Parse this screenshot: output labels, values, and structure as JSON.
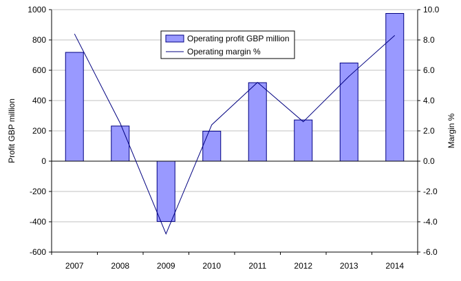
{
  "chart_data": {
    "type": "bar",
    "categories": [
      "2007",
      "2008",
      "2009",
      "2010",
      "2011",
      "2012",
      "2013",
      "2014"
    ],
    "series": [
      {
        "name": "Operating profit GBP million",
        "type": "bar",
        "axis": "left",
        "values": [
          718,
          232,
          -398,
          198,
          518,
          272,
          648,
          975
        ]
      },
      {
        "name": "Operating margin %",
        "type": "line",
        "axis": "right",
        "values": [
          8.4,
          2.5,
          -4.8,
          2.4,
          5.2,
          2.6,
          5.6,
          8.3
        ]
      }
    ],
    "title": "",
    "xlabel": "",
    "ylabel": "Profit GBP million",
    "y2label": "Margin %",
    "ylim": [
      -600,
      1000
    ],
    "y2lim": [
      -6.0,
      10.0
    ],
    "yticks": [
      "-600",
      "-400",
      "-200",
      "0",
      "200",
      "400",
      "600",
      "800",
      "1000"
    ],
    "y2ticks": [
      "-6.0",
      "-4.0",
      "-2.0",
      "0.0",
      "2.0",
      "4.0",
      "6.0",
      "8.0",
      "10.0"
    ],
    "grid": true,
    "legend_position": "top-center",
    "colors": {
      "bar_fill": "#9999ff",
      "bar_stroke": "#000080",
      "line": "#000080",
      "grid": "#c0c0c0"
    }
  }
}
